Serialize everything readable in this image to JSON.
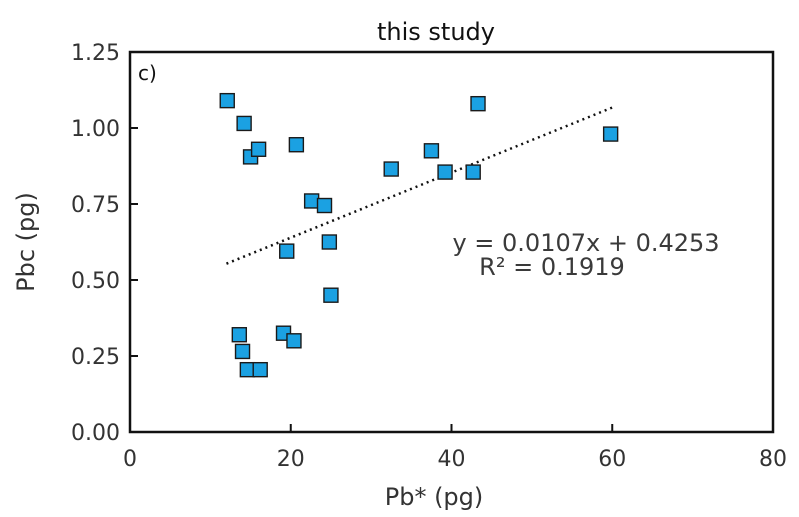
{
  "chart_data": {
    "type": "scatter",
    "title": "this study",
    "panel_label": "c)",
    "xlabel": "Pb* (pg)",
    "ylabel": "Pbc (pg)",
    "xlim": [
      0,
      80
    ],
    "ylim": [
      0,
      1.25
    ],
    "x_ticks": [
      0,
      20,
      40,
      60,
      80
    ],
    "x_tick_labels": [
      "0",
      "20",
      "40",
      "60",
      "80"
    ],
    "y_ticks": [
      0,
      0.25,
      0.5,
      0.75,
      1.0,
      1.25
    ],
    "y_tick_labels": [
      "0.00",
      "0.25",
      "0.50",
      "0.75",
      "1.00",
      "1.25"
    ],
    "grid": false,
    "marker": {
      "shape": "square",
      "fill": "#1ba1e2",
      "stroke": "#1a1a1a"
    },
    "series": [
      {
        "points": [
          {
            "x": 12.1,
            "y": 1.09
          },
          {
            "x": 14.2,
            "y": 1.015
          },
          {
            "x": 15.0,
            "y": 0.905
          },
          {
            "x": 16.0,
            "y": 0.93
          },
          {
            "x": 20.7,
            "y": 0.945
          },
          {
            "x": 22.6,
            "y": 0.76
          },
          {
            "x": 24.2,
            "y": 0.745
          },
          {
            "x": 19.5,
            "y": 0.595
          },
          {
            "x": 24.8,
            "y": 0.625
          },
          {
            "x": 25.0,
            "y": 0.45
          },
          {
            "x": 13.6,
            "y": 0.32
          },
          {
            "x": 14.0,
            "y": 0.265
          },
          {
            "x": 14.6,
            "y": 0.205
          },
          {
            "x": 16.2,
            "y": 0.205
          },
          {
            "x": 19.1,
            "y": 0.325
          },
          {
            "x": 20.4,
            "y": 0.3
          },
          {
            "x": 32.5,
            "y": 0.865
          },
          {
            "x": 37.5,
            "y": 0.925
          },
          {
            "x": 39.2,
            "y": 0.855
          },
          {
            "x": 42.7,
            "y": 0.855
          },
          {
            "x": 43.3,
            "y": 1.08
          },
          {
            "x": 59.8,
            "y": 0.98
          }
        ]
      }
    ],
    "trendline": {
      "slope": 0.0107,
      "intercept": 0.4253,
      "x_range": [
        12,
        60
      ],
      "style": "dotted",
      "equation": "y = 0.0107x + 0.4253",
      "r_squared": "R² = 0.1919"
    }
  }
}
